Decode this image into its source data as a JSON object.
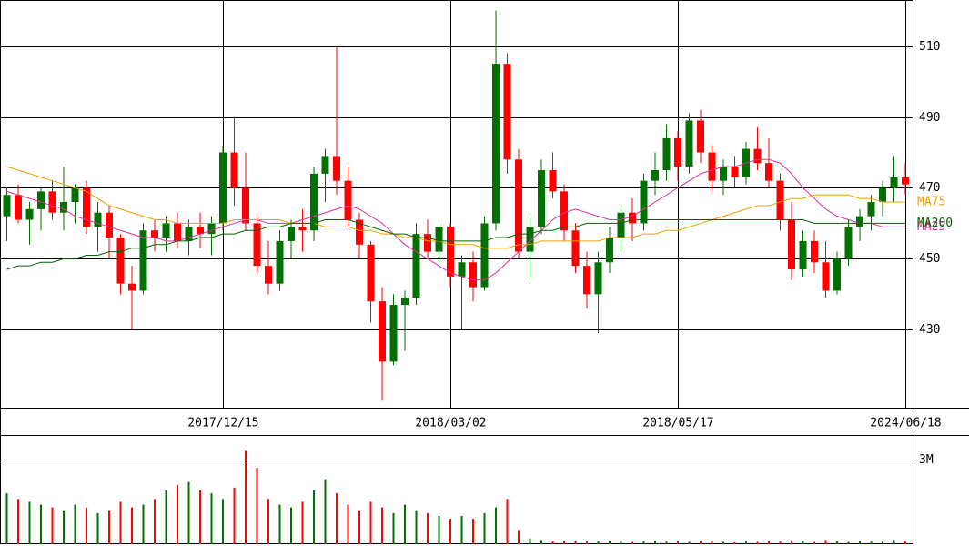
{
  "chart_data": [
    {
      "type": "candlestick",
      "categories": [
        null,
        null,
        null,
        null,
        null,
        null,
        null,
        null,
        null,
        null,
        null,
        null,
        null,
        null,
        null,
        null,
        null,
        null,
        null,
        "2017/12/15",
        null,
        null,
        null,
        null,
        null,
        null,
        null,
        null,
        null,
        null,
        null,
        null,
        null,
        null,
        null,
        null,
        null,
        null,
        null,
        "2018/03/02",
        null,
        null,
        null,
        null,
        null,
        null,
        null,
        null,
        null,
        null,
        null,
        null,
        null,
        null,
        null,
        null,
        null,
        null,
        null,
        "2018/05/17",
        null,
        null,
        null,
        null,
        null,
        null,
        null,
        null,
        null,
        null,
        null,
        null,
        null,
        null,
        null,
        null,
        null,
        null,
        null,
        "2024/06/18"
      ],
      "open": [
        462,
        468,
        461,
        464,
        469,
        463,
        466,
        470,
        459,
        463,
        456,
        443,
        441,
        458,
        456,
        460,
        455,
        459,
        457,
        460,
        480,
        470,
        460,
        448,
        443,
        455,
        459,
        458,
        474,
        479,
        472,
        461,
        454,
        438,
        421,
        437,
        439,
        457,
        452,
        459,
        445,
        449,
        442,
        460,
        505,
        478,
        452,
        459,
        475,
        469,
        458,
        448,
        440,
        449,
        456,
        463,
        460,
        472,
        475,
        484,
        476,
        489,
        480,
        472,
        476,
        473,
        481,
        477,
        472,
        461,
        447,
        455,
        449,
        441,
        450,
        459,
        462,
        466,
        470,
        473
      ],
      "high": [
        470,
        471,
        466,
        470,
        472,
        476,
        471,
        472,
        466,
        465,
        457,
        448,
        460,
        461,
        462,
        463,
        461,
        463,
        462,
        482,
        490,
        480,
        462,
        455,
        458,
        461,
        464,
        476,
        481,
        510,
        476,
        463,
        455,
        442,
        440,
        441,
        460,
        461,
        460,
        460,
        451,
        452,
        462,
        520,
        508,
        481,
        462,
        478,
        480,
        471,
        460,
        452,
        452,
        459,
        465,
        467,
        474,
        480,
        488,
        486,
        491,
        492,
        482,
        478,
        479,
        483,
        487,
        484,
        474,
        466,
        458,
        458,
        455,
        452,
        461,
        464,
        468,
        472,
        479,
        477
      ],
      "low": [
        455,
        460,
        454,
        458,
        461,
        458,
        460,
        457,
        452,
        450,
        440,
        430,
        440,
        452,
        452,
        453,
        451,
        453,
        451,
        458,
        465,
        458,
        446,
        440,
        441,
        450,
        452,
        455,
        466,
        468,
        459,
        450,
        432,
        410,
        420,
        424,
        437,
        450,
        449,
        442,
        430,
        438,
        441,
        458,
        474,
        450,
        444,
        457,
        467,
        455,
        446,
        436,
        429,
        446,
        452,
        455,
        458,
        468,
        472,
        472,
        474,
        477,
        469,
        468,
        470,
        471,
        475,
        470,
        458,
        444,
        445,
        446,
        439,
        440,
        448,
        455,
        458,
        462,
        466,
        468
      ],
      "close": [
        468,
        461,
        464,
        469,
        463,
        466,
        470,
        459,
        463,
        456,
        443,
        441,
        458,
        456,
        460,
        455,
        459,
        457,
        460,
        480,
        470,
        460,
        448,
        443,
        455,
        459,
        458,
        474,
        479,
        472,
        461,
        454,
        438,
        421,
        437,
        439,
        457,
        452,
        459,
        445,
        449,
        442,
        460,
        505,
        478,
        452,
        459,
        475,
        469,
        458,
        448,
        440,
        449,
        456,
        463,
        460,
        472,
        475,
        484,
        476,
        489,
        480,
        472,
        476,
        473,
        481,
        477,
        472,
        461,
        447,
        455,
        449,
        441,
        450,
        459,
        462,
        466,
        470,
        473,
        471
      ],
      "up_color": "#007000",
      "down_color": "#ff0000",
      "series": [
        {
          "name": "MA25",
          "color": "#e0309a",
          "values": [
            469,
            468,
            467,
            466,
            465,
            464,
            462,
            461,
            460,
            459,
            458,
            457,
            456,
            456,
            455,
            455,
            456,
            457,
            458,
            459,
            460,
            461,
            461,
            460,
            460,
            460,
            461,
            462,
            463,
            464,
            465,
            464,
            462,
            460,
            457,
            454,
            452,
            450,
            448,
            446,
            445,
            444,
            444,
            446,
            449,
            452,
            455,
            458,
            461,
            463,
            464,
            463,
            462,
            461,
            461,
            462,
            464,
            466,
            468,
            470,
            472,
            474,
            475,
            476,
            476,
            477,
            478,
            478,
            477,
            474,
            470,
            467,
            464,
            462,
            461,
            460,
            460,
            459,
            459,
            459
          ]
        },
        {
          "name": "MA75",
          "color": "#f0a000",
          "values": [
            476,
            475,
            474,
            473,
            472,
            471,
            470,
            469,
            467,
            465,
            464,
            463,
            462,
            461,
            461,
            460,
            460,
            460,
            460,
            460,
            461,
            461,
            461,
            461,
            461,
            460,
            460,
            460,
            459,
            459,
            459,
            458,
            458,
            457,
            457,
            456,
            456,
            455,
            455,
            454,
            454,
            454,
            453,
            453,
            453,
            454,
            454,
            455,
            455,
            455,
            455,
            455,
            455,
            456,
            456,
            456,
            457,
            457,
            458,
            458,
            459,
            460,
            461,
            462,
            463,
            464,
            465,
            465,
            466,
            467,
            467,
            468,
            468,
            468,
            468,
            467,
            467,
            466,
            466,
            466
          ]
        },
        {
          "name": "MA200",
          "color": "#006400",
          "values": [
            447,
            448,
            448,
            449,
            449,
            450,
            450,
            451,
            451,
            452,
            452,
            453,
            453,
            454,
            454,
            455,
            455,
            456,
            456,
            457,
            457,
            458,
            458,
            459,
            459,
            460,
            460,
            460,
            461,
            461,
            461,
            460,
            459,
            458,
            457,
            457,
            456,
            456,
            455,
            455,
            455,
            455,
            455,
            456,
            456,
            457,
            457,
            458,
            458,
            459,
            459,
            460,
            460,
            460,
            460,
            461,
            461,
            461,
            461,
            461,
            461,
            461,
            461,
            461,
            461,
            461,
            461,
            461,
            461,
            461,
            461,
            460,
            460,
            460,
            460,
            460,
            460,
            460,
            460,
            460
          ]
        }
      ],
      "ylim": [
        408,
        523
      ],
      "yticks": [
        430,
        450,
        470,
        490,
        510
      ],
      "grid": true
    },
    {
      "type": "bar",
      "values": [
        1800000,
        1600000,
        1500000,
        1400000,
        1300000,
        1200000,
        1400000,
        1300000,
        1100000,
        1200000,
        1500000,
        1300000,
        1400000,
        1600000,
        1900000,
        2100000,
        2200000,
        1900000,
        1800000,
        1600000,
        2000000,
        3300000,
        2700000,
        1600000,
        1400000,
        1300000,
        1500000,
        1900000,
        2300000,
        1800000,
        1400000,
        1200000,
        1500000,
        1300000,
        1100000,
        1400000,
        1200000,
        1100000,
        1000000,
        900000,
        1000000,
        900000,
        1100000,
        1300000,
        1600000,
        500000,
        200000,
        150000,
        120000,
        100000,
        100000,
        90000,
        110000,
        100000,
        90000,
        80000,
        100000,
        120000,
        90000,
        100000,
        80000,
        90000,
        100000,
        80000,
        70000,
        90000,
        80000,
        100000,
        90000,
        110000,
        100000,
        80000,
        150000,
        90000,
        80000,
        100000,
        90000,
        120000,
        150000,
        130000
      ],
      "ylim": [
        0,
        3800000
      ],
      "yticks": [
        {
          "value": 3000000,
          "label": "3M"
        }
      ],
      "grid": true
    }
  ]
}
